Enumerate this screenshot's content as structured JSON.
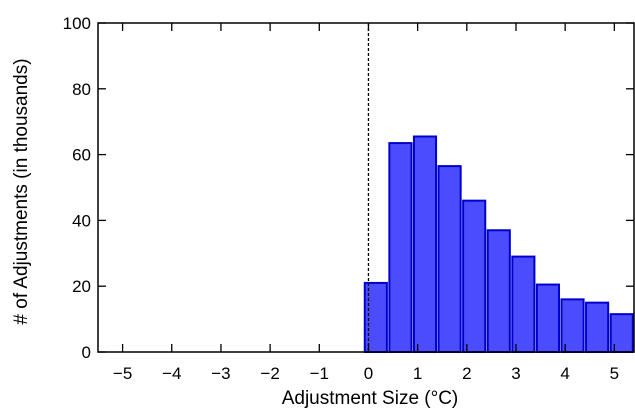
{
  "chart_data": {
    "type": "bar",
    "title": "",
    "xlabel": "Adjustment Size (°C)",
    "ylabel": "# of Adjustments (in thousands)",
    "xlim": [
      -5.5,
      5.4
    ],
    "ylim": [
      0,
      100
    ],
    "bar_width": 0.45,
    "x_ticks": [
      {
        "value": -5,
        "label": "−5"
      },
      {
        "value": -4,
        "label": "−4"
      },
      {
        "value": -3,
        "label": "−3"
      },
      {
        "value": -2,
        "label": "−2"
      },
      {
        "value": -1,
        "label": "−1"
      },
      {
        "value": 0,
        "label": "0"
      },
      {
        "value": 1,
        "label": "1"
      },
      {
        "value": 2,
        "label": "2"
      },
      {
        "value": 3,
        "label": "3"
      },
      {
        "value": 4,
        "label": "4"
      },
      {
        "value": 5,
        "label": "5"
      }
    ],
    "y_ticks": [
      {
        "value": 0,
        "label": "0"
      },
      {
        "value": 20,
        "label": "20"
      },
      {
        "value": 40,
        "label": "40"
      },
      {
        "value": 60,
        "label": "60"
      },
      {
        "value": 80,
        "label": "80"
      },
      {
        "value": 100,
        "label": "100"
      }
    ],
    "x": [
      0.15,
      0.65,
      1.15,
      1.65,
      2.15,
      2.65,
      3.15,
      3.65,
      4.15,
      4.65,
      5.15
    ],
    "values": [
      21,
      63.5,
      65.5,
      56.5,
      46,
      37,
      29,
      20.5,
      16,
      15,
      11.5
    ],
    "reference_line": {
      "x": 0,
      "style": "dashed"
    },
    "grid": false,
    "legend": "none",
    "colors": {
      "bar_fill": "#4c4cff",
      "bar_edge": "#0000cc",
      "axis": "#000000"
    }
  }
}
